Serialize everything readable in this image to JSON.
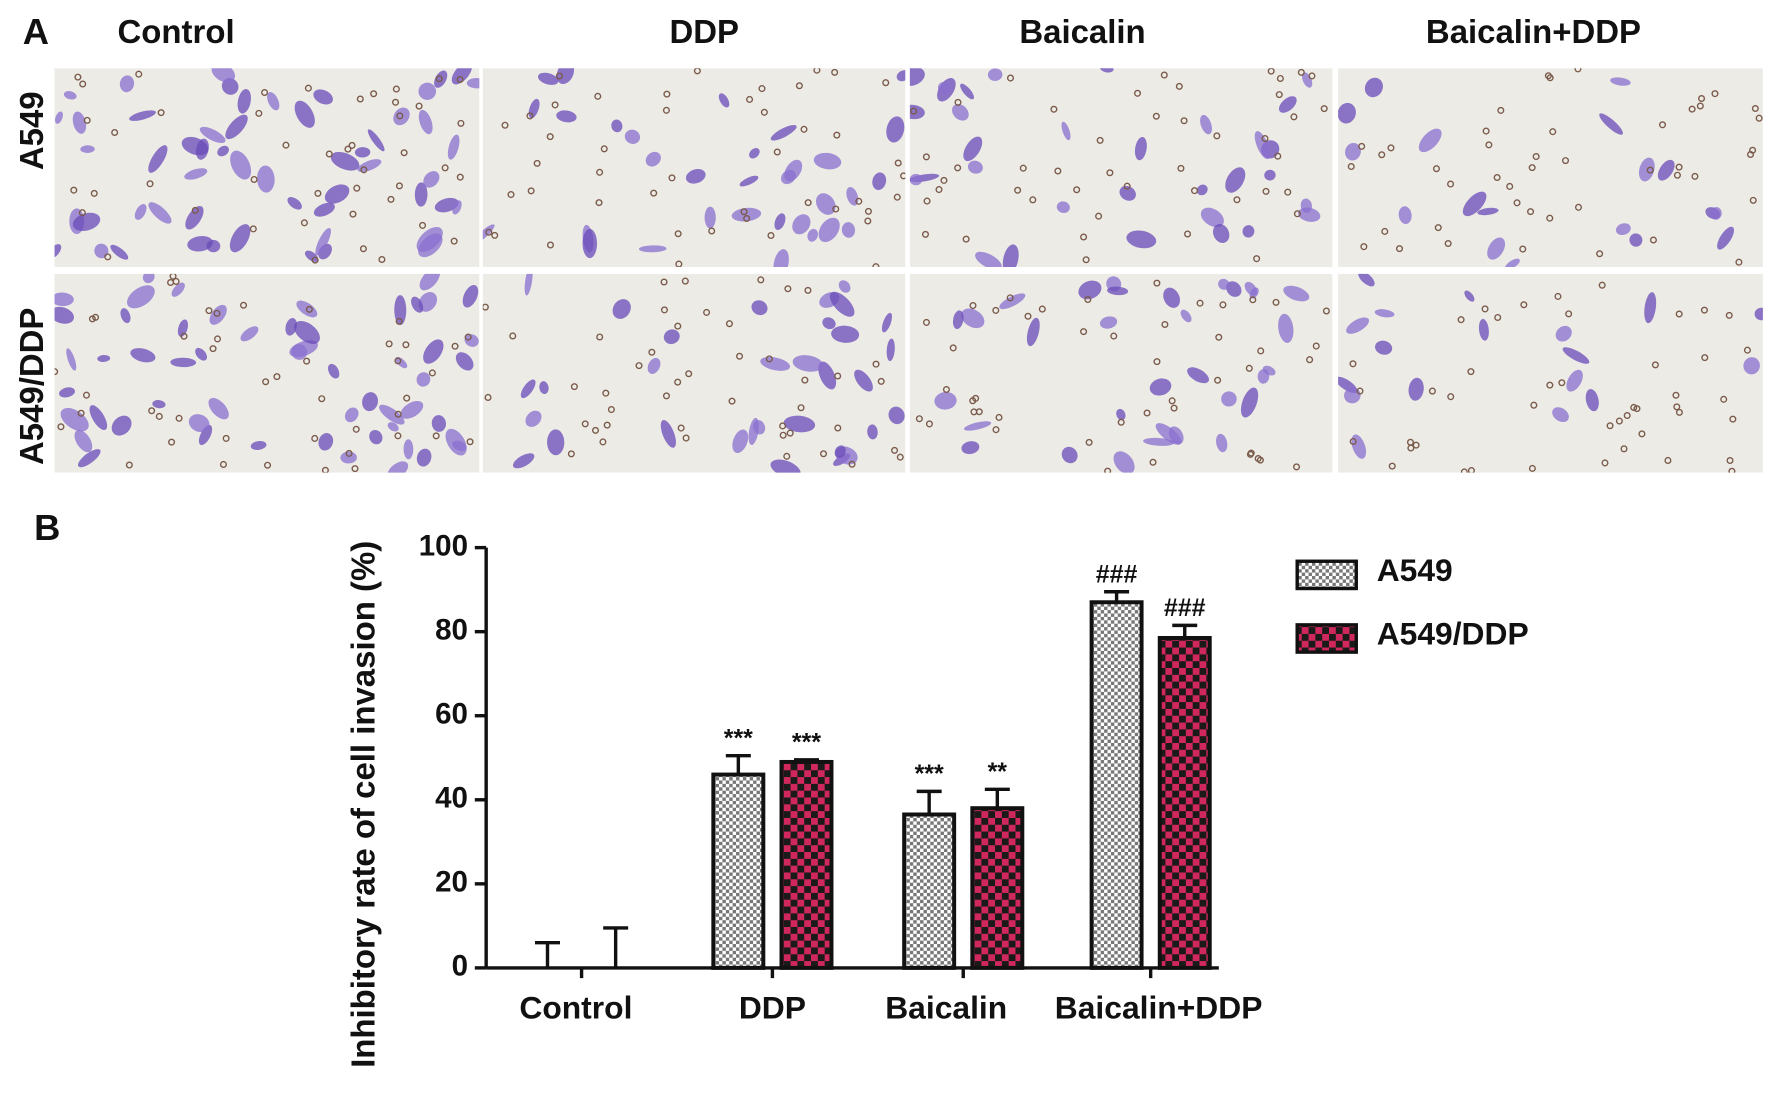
{
  "panel_a": {
    "label": "A",
    "columns": [
      "Control",
      "DDP",
      "Baicalin",
      "Baicalin+DDP"
    ],
    "rows": [
      "A549",
      "A549/DDP"
    ]
  },
  "chart_data": {
    "type": "bar",
    "panel_label": "B",
    "y_label": "Inhibitory rate of cell invasion (%)",
    "categories": [
      "Control",
      "DDP",
      "Baicalin",
      "Baicalin+DDP"
    ],
    "series": [
      {
        "name": "A549",
        "color": "#cfcfcf",
        "values": [
          0,
          46,
          36.5,
          87
        ],
        "errors": [
          6,
          4.5,
          5.5,
          2.5
        ],
        "annotations": [
          null,
          "***",
          "***",
          "###"
        ]
      },
      {
        "name": "A549/DDP",
        "color": "#d0285c",
        "values": [
          0,
          49,
          38,
          78.5
        ],
        "errors": [
          9.5,
          0.5,
          4.5,
          3
        ],
        "annotations": [
          null,
          "***",
          "**",
          "###"
        ]
      }
    ],
    "ylim": [
      0,
      100
    ],
    "yticks": [
      0,
      20,
      40,
      60,
      80,
      100
    ],
    "grid": false,
    "legend": "upper right"
  }
}
